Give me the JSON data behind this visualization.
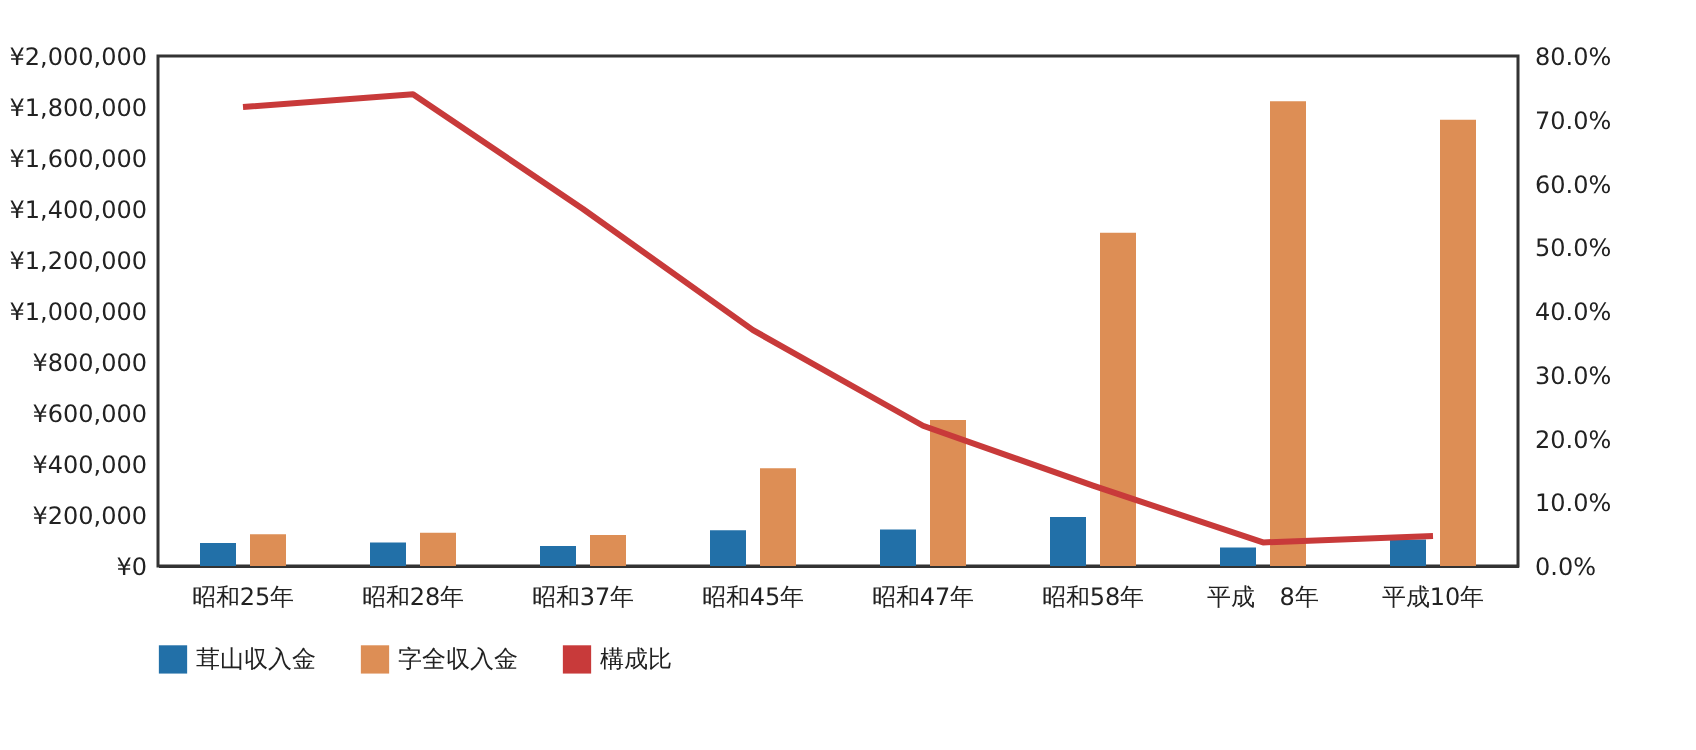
{
  "chart_data": {
    "type": "bar",
    "categories": [
      "昭和25年",
      "昭和28年",
      "昭和37年",
      "昭和45年",
      "昭和47年",
      "昭和58年",
      "平成　8年",
      "平成10年"
    ],
    "series": [
      {
        "name": "茸山収入金",
        "type": "bar",
        "color": "#2270a8",
        "values": [
          90000,
          92000,
          78000,
          140000,
          143000,
          192000,
          73000,
          104000
        ]
      },
      {
        "name": "字全収入金",
        "type": "bar",
        "color": "#dd8e55",
        "values": [
          125000,
          130000,
          122000,
          383000,
          573000,
          1307000,
          1823000,
          1750000
        ]
      },
      {
        "name": "構成比",
        "type": "line",
        "axis": "y2",
        "color": "#c83a3a",
        "values": [
          72,
          74,
          56,
          37,
          22,
          12.6,
          3.7,
          4.7
        ]
      }
    ],
    "ylim": [
      0,
      2000000
    ],
    "yticks": [
      {
        "value": 0,
        "label": "¥0"
      },
      {
        "value": 200000,
        "label": "¥200,000"
      },
      {
        "value": 400000,
        "label": "¥400,000"
      },
      {
        "value": 600000,
        "label": "¥600,000"
      },
      {
        "value": 800000,
        "label": "¥800,000"
      },
      {
        "value": 1000000,
        "label": "¥1,000,000"
      },
      {
        "value": 1200000,
        "label": "¥1,200,000"
      },
      {
        "value": 1400000,
        "label": "¥1,400,000"
      },
      {
        "value": 1600000,
        "label": "¥1,600,000"
      },
      {
        "value": 1800000,
        "label": "¥1,800,000"
      },
      {
        "value": 2000000,
        "label": "¥2,000,000"
      }
    ],
    "y2lim": [
      0,
      80
    ],
    "y2ticks": [
      {
        "value": 0,
        "label": "0.0%"
      },
      {
        "value": 10,
        "label": "10.0%"
      },
      {
        "value": 20,
        "label": "20.0%"
      },
      {
        "value": 30,
        "label": "30.0%"
      },
      {
        "value": 40,
        "label": "40.0%"
      },
      {
        "value": 50,
        "label": "50.0%"
      },
      {
        "value": 60,
        "label": "60.0%"
      },
      {
        "value": 70,
        "label": "70.0%"
      },
      {
        "value": 80,
        "label": "80.0%"
      }
    ],
    "grid": false,
    "legend": "bottom",
    "line_style": "solid",
    "marker": "none"
  }
}
